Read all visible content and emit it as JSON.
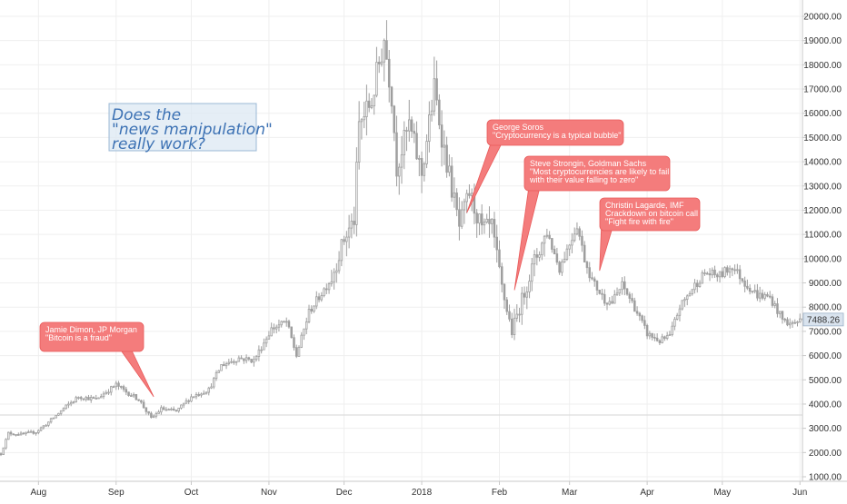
{
  "chart_data": {
    "type": "candlestick",
    "title": "",
    "xlabel": "",
    "ylabel": "",
    "ylim": [
      800,
      20500
    ],
    "y_ticks": [
      1000,
      2000,
      3000,
      4000,
      5000,
      6000,
      7000,
      8000,
      9000,
      10000,
      11000,
      12000,
      13000,
      14000,
      15000,
      16000,
      17000,
      18000,
      19000,
      20000
    ],
    "x_ticks": [
      "Aug",
      "Sep",
      "Oct",
      "Nov",
      "Dec",
      "2018",
      "Feb",
      "Mar",
      "Apr",
      "May",
      "Jun"
    ],
    "x_range": [
      "2017-07-17",
      "2018-06-02"
    ],
    "grid": true,
    "candle_color": "#9e9e9e",
    "last_price": {
      "label": "7488.26",
      "value": 7488.26
    },
    "reference_level": 3550,
    "price_path": [
      [
        "2017-07-17",
        1950
      ],
      [
        "2017-07-20",
        2800
      ],
      [
        "2017-07-25",
        2750
      ],
      [
        "2017-07-31",
        2850
      ],
      [
        "2017-08-05",
        3250
      ],
      [
        "2017-08-12",
        3900
      ],
      [
        "2017-08-17",
        4300
      ],
      [
        "2017-08-24",
        4200
      ],
      [
        "2017-09-01",
        4800
      ],
      [
        "2017-09-05",
        4500
      ],
      [
        "2017-09-10",
        4200
      ],
      [
        "2017-09-15",
        3400
      ],
      [
        "2017-09-19",
        3800
      ],
      [
        "2017-09-25",
        3700
      ],
      [
        "2017-10-01",
        4300
      ],
      [
        "2017-10-08",
        4600
      ],
      [
        "2017-10-13",
        5600
      ],
      [
        "2017-10-20",
        5900
      ],
      [
        "2017-10-26",
        5800
      ],
      [
        "2017-11-02",
        7100
      ],
      [
        "2017-11-08",
        7400
      ],
      [
        "2017-11-12",
        6000
      ],
      [
        "2017-11-17",
        7800
      ],
      [
        "2017-11-26",
        9200
      ],
      [
        "2017-12-01",
        10800
      ],
      [
        "2017-12-05",
        11600
      ],
      [
        "2017-12-07",
        15500
      ],
      [
        "2017-12-12",
        16500
      ],
      [
        "2017-12-17",
        19100
      ],
      [
        "2017-12-20",
        16800
      ],
      [
        "2017-12-22",
        13800
      ],
      [
        "2017-12-27",
        15500
      ],
      [
        "2018-01-01",
        13500
      ],
      [
        "2018-01-06",
        17000
      ],
      [
        "2018-01-10",
        14500
      ],
      [
        "2018-01-16",
        11300
      ],
      [
        "2018-01-20",
        12700
      ],
      [
        "2018-01-25",
        11200
      ],
      [
        "2018-01-29",
        11300
      ],
      [
        "2018-02-02",
        8800
      ],
      [
        "2018-02-06",
        7000
      ],
      [
        "2018-02-10",
        8300
      ],
      [
        "2018-02-15",
        9900
      ],
      [
        "2018-02-20",
        11100
      ],
      [
        "2018-02-25",
        9600
      ],
      [
        "2018-03-04",
        11400
      ],
      [
        "2018-03-07",
        10000
      ],
      [
        "2018-03-10",
        9100
      ],
      [
        "2018-03-15",
        8300
      ],
      [
        "2018-03-18",
        8200
      ],
      [
        "2018-03-22",
        8900
      ],
      [
        "2018-03-26",
        8200
      ],
      [
        "2018-04-01",
        6900
      ],
      [
        "2018-04-06",
        6600
      ],
      [
        "2018-04-10",
        6800
      ],
      [
        "2018-04-14",
        8000
      ],
      [
        "2018-04-20",
        8900
      ],
      [
        "2018-04-24",
        9400
      ],
      [
        "2018-04-30",
        9300
      ],
      [
        "2018-05-05",
        9700
      ],
      [
        "2018-05-10",
        9000
      ],
      [
        "2018-05-15",
        8500
      ],
      [
        "2018-05-20",
        8400
      ],
      [
        "2018-05-25",
        7500
      ],
      [
        "2018-05-28",
        7300
      ],
      [
        "2018-06-02",
        7490
      ]
    ],
    "annotations": [
      {
        "date": "2017-09-16",
        "price": 4300,
        "lines": [
          "Jamie Dimon, JP Morgan",
          "\"Bitcoin is a fraud\""
        ]
      },
      {
        "date": "2018-01-19",
        "price": 11900,
        "lines": [
          "George Soros",
          "\"Cryptocurrency is a typical bubble\""
        ]
      },
      {
        "date": "2018-02-07",
        "price": 8700,
        "lines": [
          "Steve Strongin, Goldman Sachs",
          "\"Most cryptocurrencies are likely to fail",
          "with their value falling to zero\""
        ]
      },
      {
        "date": "2018-03-13",
        "price": 9500,
        "lines": [
          "Christin Lagarde, IMF",
          "Crackdown on bitcoin call",
          "\"Fight fire with fire\""
        ]
      }
    ],
    "question_box": {
      "lines": [
        "Does the",
        "\"news manipulation\"",
        "really work?"
      ]
    }
  },
  "colors": {
    "callout_fill": "#f47c7c",
    "callout_border": "#e85a5a",
    "question_text": "#3d72b4",
    "question_fill": "#dce8f3",
    "question_border": "#9bb8d6",
    "grid": "#efefef",
    "axis": "#c9c9c9"
  }
}
